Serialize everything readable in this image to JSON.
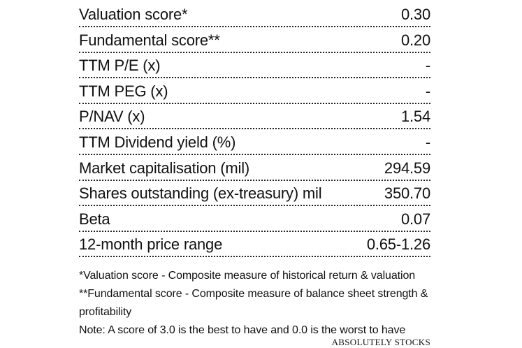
{
  "metrics": [
    {
      "label": "Valuation score*",
      "value": "0.30"
    },
    {
      "label": "Fundamental score**",
      "value": "0.20"
    },
    {
      "label": "TTM P/E (x)",
      "value": "-"
    },
    {
      "label": "TTM PEG (x)",
      "value": "-"
    },
    {
      "label": "P/NAV (x)",
      "value": "1.54"
    },
    {
      "label": "TTM Dividend yield (%)",
      "value": "-"
    },
    {
      "label": "Market capitalisation (mil)",
      "value": "294.59"
    },
    {
      "label": "Shares outstanding (ex-treasury) mil",
      "value": "350.70"
    },
    {
      "label": "Beta",
      "value": "0.07"
    },
    {
      "label": "12-month price range",
      "value": "0.65-1.26"
    }
  ],
  "notes": {
    "valuation_note": "*Valuation score - Composite measure of historical return & valuation",
    "fundamental_note": "**Fundamental score - Composite measure of balance sheet strength & profitability",
    "scale_note": "Note: A score of 3.0 is the best to have and 0.0 is the worst to have"
  },
  "source": "ABSOLUTELY STOCKS"
}
